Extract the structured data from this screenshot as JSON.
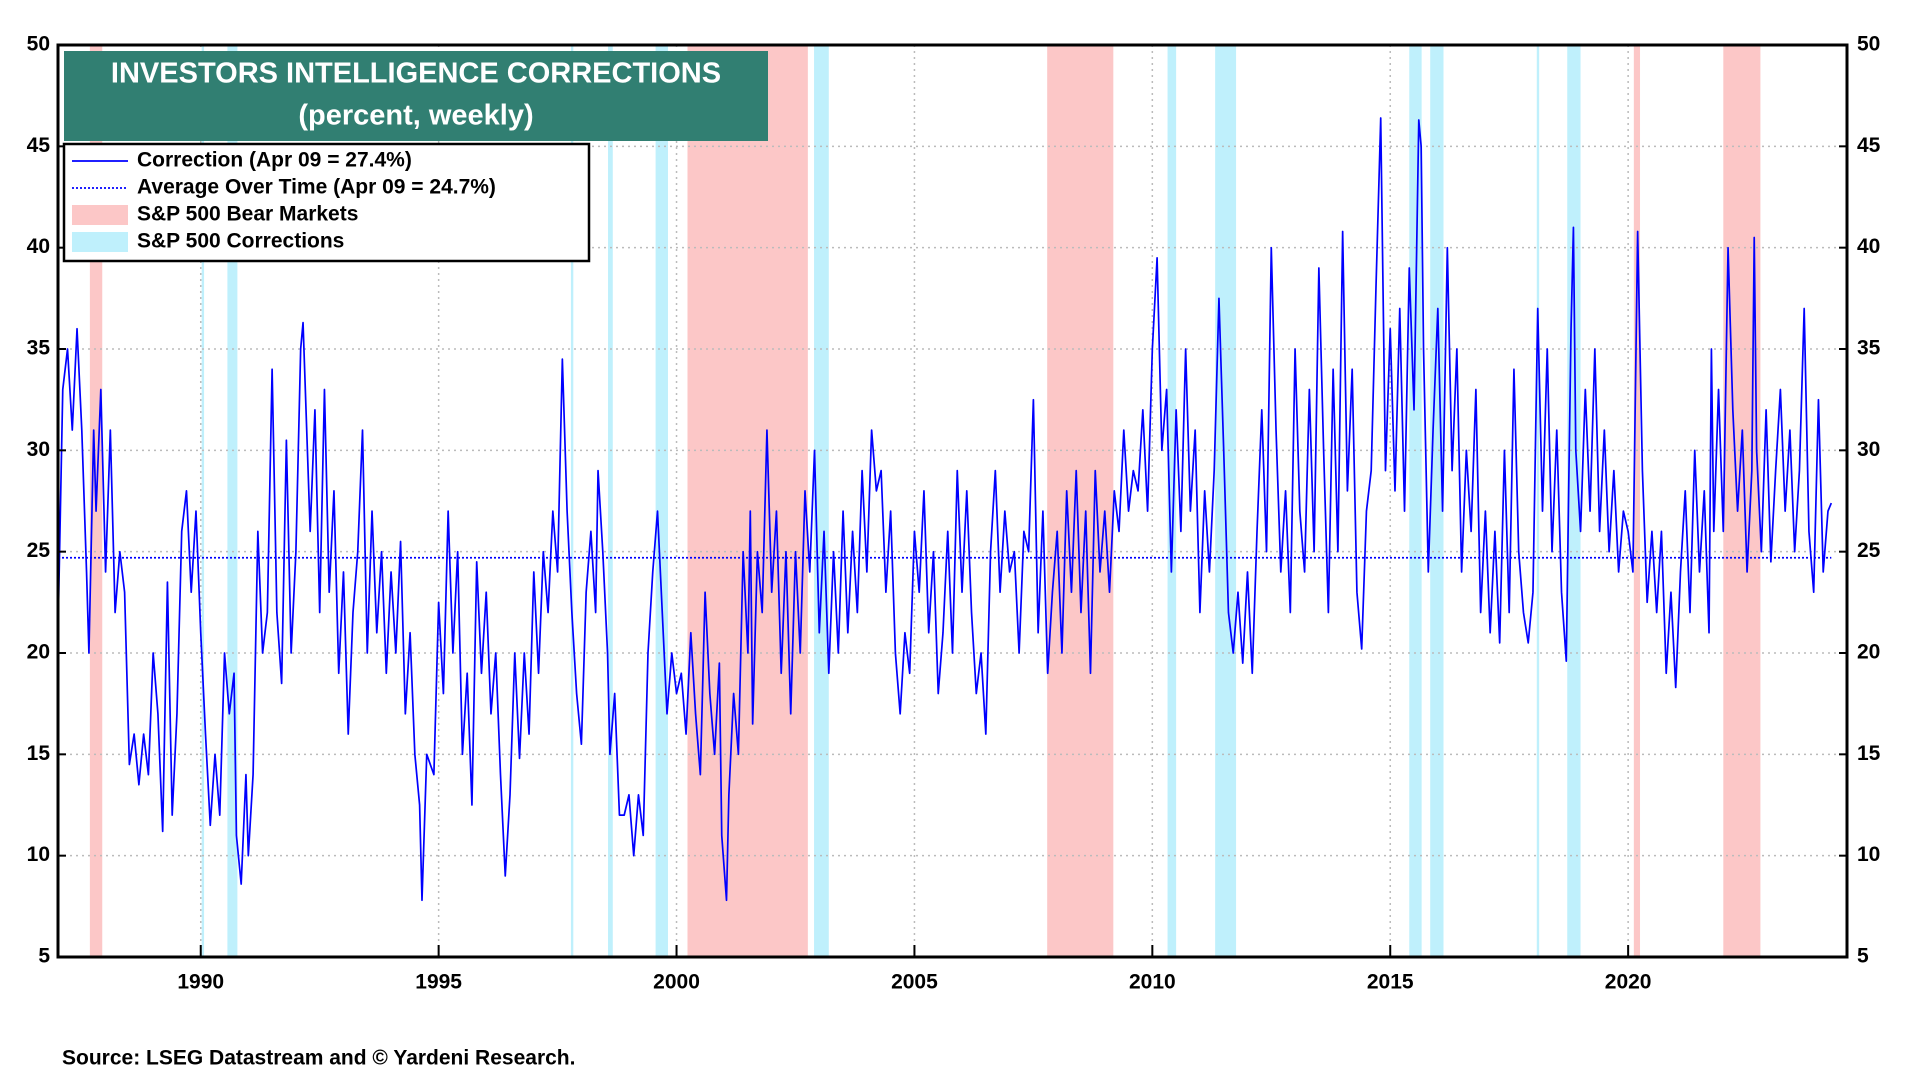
{
  "chart_data": {
    "type": "line",
    "title": "INVESTORS INTELLIGENCE CORRECTIONS",
    "subtitle": "(percent, weekly)",
    "source": "Source: LSEG Datastream and © Yardeni Research.",
    "xlim": [
      1987,
      2024.6
    ],
    "xticks": [
      1990,
      1995,
      2000,
      2005,
      2010,
      2015,
      2020
    ],
    "ylim": [
      5,
      50
    ],
    "yticks": [
      5,
      10,
      15,
      20,
      25,
      30,
      35,
      40,
      45,
      50
    ],
    "y2lim": [
      5,
      50
    ],
    "y2ticks": [
      5,
      10,
      15,
      20,
      25,
      30,
      35,
      40,
      45,
      50
    ],
    "grid": true,
    "legend": "upper left",
    "series": [
      {
        "name": "Correction (Apr 09 = 27.4%)",
        "color": "#0000ff",
        "style": "solid",
        "x": [
          1987.0,
          1987.1,
          1987.2,
          1987.3,
          1987.4,
          1987.5,
          1987.6,
          1987.65,
          1987.75,
          1987.8,
          1987.9,
          1988.0,
          1988.1,
          1988.2,
          1988.3,
          1988.4,
          1988.5,
          1988.6,
          1988.7,
          1988.8,
          1988.9,
          1989.0,
          1989.1,
          1989.2,
          1989.3,
          1989.4,
          1989.5,
          1989.6,
          1989.7,
          1989.8,
          1989.9,
          1990.0,
          1990.1,
          1990.2,
          1990.3,
          1990.4,
          1990.5,
          1990.6,
          1990.7,
          1990.75,
          1990.85,
          1990.95,
          1991.0,
          1991.1,
          1991.2,
          1991.3,
          1991.4,
          1991.5,
          1991.6,
          1991.7,
          1991.8,
          1991.9,
          1992.0,
          1992.1,
          1992.15,
          1992.3,
          1992.4,
          1992.5,
          1992.6,
          1992.7,
          1992.8,
          1992.9,
          1993.0,
          1993.1,
          1993.2,
          1993.3,
          1993.4,
          1993.5,
          1993.6,
          1993.7,
          1993.8,
          1993.9,
          1994.0,
          1994.1,
          1994.2,
          1994.3,
          1994.4,
          1994.5,
          1994.6,
          1994.65,
          1994.75,
          1994.9,
          1995.0,
          1995.1,
          1995.2,
          1995.3,
          1995.4,
          1995.5,
          1995.6,
          1995.7,
          1995.8,
          1995.9,
          1996.0,
          1996.1,
          1996.2,
          1996.3,
          1996.4,
          1996.5,
          1996.6,
          1996.7,
          1996.8,
          1996.9,
          1997.0,
          1997.1,
          1997.2,
          1997.3,
          1997.4,
          1997.5,
          1997.6,
          1997.7,
          1997.8,
          1997.9,
          1998.0,
          1998.1,
          1998.2,
          1998.3,
          1998.35,
          1998.45,
          1998.55,
          1998.6,
          1998.7,
          1998.8,
          1998.9,
          1999.0,
          1999.1,
          1999.2,
          1999.3,
          1999.4,
          1999.5,
          1999.6,
          1999.7,
          1999.8,
          1999.9,
          2000.0,
          2000.1,
          2000.2,
          2000.3,
          2000.4,
          2000.5,
          2000.6,
          2000.7,
          2000.8,
          2000.9,
          2000.95,
          2001.05,
          2001.1,
          2001.2,
          2001.3,
          2001.4,
          2001.5,
          2001.55,
          2001.6,
          2001.7,
          2001.8,
          2001.9,
          2002.0,
          2002.1,
          2002.2,
          2002.3,
          2002.4,
          2002.5,
          2002.6,
          2002.7,
          2002.8,
          2002.9,
          2003.0,
          2003.1,
          2003.2,
          2003.3,
          2003.4,
          2003.5,
          2003.6,
          2003.7,
          2003.8,
          2003.9,
          2004.0,
          2004.1,
          2004.2,
          2004.3,
          2004.4,
          2004.5,
          2004.6,
          2004.7,
          2004.8,
          2004.9,
          2005.0,
          2005.1,
          2005.2,
          2005.3,
          2005.4,
          2005.5,
          2005.6,
          2005.7,
          2005.8,
          2005.9,
          2006.0,
          2006.1,
          2006.2,
          2006.3,
          2006.4,
          2006.5,
          2006.6,
          2006.7,
          2006.8,
          2006.9,
          2007.0,
          2007.1,
          2007.2,
          2007.3,
          2007.4,
          2007.5,
          2007.6,
          2007.7,
          2007.8,
          2007.9,
          2008.0,
          2008.1,
          2008.2,
          2008.3,
          2008.4,
          2008.5,
          2008.6,
          2008.7,
          2008.8,
          2008.9,
          2009.0,
          2009.1,
          2009.2,
          2009.3,
          2009.4,
          2009.5,
          2009.6,
          2009.7,
          2009.8,
          2009.9,
          2010.0,
          2010.1,
          2010.2,
          2010.3,
          2010.4,
          2010.5,
          2010.6,
          2010.7,
          2010.8,
          2010.9,
          2011.0,
          2011.1,
          2011.2,
          2011.3,
          2011.4,
          2011.5,
          2011.6,
          2011.7,
          2011.8,
          2011.9,
          2012.0,
          2012.1,
          2012.2,
          2012.3,
          2012.4,
          2012.5,
          2012.6,
          2012.7,
          2012.8,
          2012.9,
          2013.0,
          2013.1,
          2013.2,
          2013.3,
          2013.4,
          2013.5,
          2013.6,
          2013.7,
          2013.8,
          2013.9,
          2014.0,
          2014.1,
          2014.2,
          2014.3,
          2014.4,
          2014.5,
          2014.6,
          2014.7,
          2014.8,
          2014.9,
          2015.0,
          2015.1,
          2015.2,
          2015.3,
          2015.4,
          2015.5,
          2015.6,
          2015.65,
          2015.7,
          2015.8,
          2015.9,
          2016.0,
          2016.1,
          2016.2,
          2016.3,
          2016.4,
          2016.5,
          2016.6,
          2016.7,
          2016.8,
          2016.9,
          2017.0,
          2017.1,
          2017.2,
          2017.3,
          2017.4,
          2017.5,
          2017.6,
          2017.7,
          2017.8,
          2017.9,
          2018.0,
          2018.1,
          2018.2,
          2018.3,
          2018.4,
          2018.5,
          2018.6,
          2018.7,
          2018.75,
          2018.8,
          2018.85,
          2018.9,
          2019.0,
          2019.1,
          2019.2,
          2019.3,
          2019.4,
          2019.5,
          2019.6,
          2019.7,
          2019.8,
          2019.9,
          2020.0,
          2020.1,
          2020.2,
          2020.3,
          2020.4,
          2020.5,
          2020.6,
          2020.7,
          2020.8,
          2020.9,
          2021.0,
          2021.1,
          2021.2,
          2021.3,
          2021.4,
          2021.5,
          2021.6,
          2021.7,
          2021.75,
          2021.8,
          2021.9,
          2022.0,
          2022.1,
          2022.2,
          2022.3,
          2022.4,
          2022.5,
          2022.6,
          2022.65,
          2022.7,
          2022.8,
          2022.9,
          2023.0,
          2023.1,
          2023.2,
          2023.3,
          2023.4,
          2023.5,
          2023.6,
          2023.7,
          2023.8,
          2023.9,
          2024.0,
          2024.1,
          2024.2,
          2024.27
        ],
        "values": [
          21,
          33,
          35,
          31,
          36,
          31,
          24,
          20,
          31,
          27,
          33,
          24,
          31,
          22,
          25,
          23,
          14.5,
          16,
          13.5,
          16,
          14,
          20,
          17,
          11.2,
          23.5,
          12,
          17,
          26,
          28,
          23,
          27,
          21,
          16,
          11.5,
          15,
          12,
          20,
          17,
          19,
          11,
          8.6,
          14,
          10,
          14,
          26,
          20,
          22,
          34,
          22,
          18.5,
          30.5,
          20,
          25,
          35,
          36.3,
          26,
          32,
          22,
          33,
          23,
          28,
          19,
          24,
          16,
          22,
          25,
          31,
          20,
          27,
          21,
          25,
          19,
          24,
          20,
          25.5,
          17,
          21,
          15,
          12.5,
          7.8,
          15,
          14,
          22.5,
          18,
          27,
          20,
          25,
          15,
          19,
          12.5,
          24.5,
          19,
          23,
          17,
          20,
          14,
          9,
          13,
          20,
          14.8,
          20,
          16,
          24,
          19,
          25,
          22,
          27,
          24,
          34.5,
          27,
          22,
          18,
          15.5,
          23,
          26,
          22,
          29,
          25,
          20,
          15,
          18,
          12,
          12,
          13,
          10,
          13,
          11,
          20,
          24,
          27,
          22,
          17,
          20,
          18,
          19,
          16,
          21,
          17,
          14,
          23,
          18,
          15,
          19.5,
          11,
          7.8,
          13,
          18,
          15,
          25,
          20,
          27,
          16.5,
          25,
          22,
          31,
          23,
          27,
          19,
          25,
          17,
          25,
          20,
          28,
          24,
          30,
          21,
          26,
          19,
          25,
          20,
          27,
          21,
          26,
          22,
          29,
          24,
          31,
          28,
          29,
          23,
          27,
          20,
          17,
          21,
          19,
          26,
          23,
          28,
          21,
          25,
          18,
          21,
          26,
          20,
          29,
          23,
          28,
          22,
          18,
          20,
          16,
          25,
          29,
          23,
          27,
          24,
          25,
          20,
          26,
          25,
          32.5,
          21,
          27,
          19,
          23,
          26,
          20,
          28,
          23,
          29,
          22,
          27,
          19,
          29,
          24,
          27,
          23,
          28,
          26,
          31,
          27,
          29,
          28,
          32,
          27,
          35,
          39.5,
          30,
          33,
          24,
          32,
          26,
          35,
          27,
          31,
          22,
          28,
          24,
          29,
          37.5,
          30,
          22,
          20,
          23,
          19.5,
          24,
          19,
          26,
          32,
          25,
          40,
          31,
          24,
          28,
          22,
          35,
          27,
          24,
          33,
          25,
          39,
          30,
          22,
          34,
          25,
          40.8,
          28,
          34,
          23,
          20.2,
          27,
          29,
          38,
          46.4,
          29,
          36,
          28,
          37,
          27,
          39,
          32,
          46.3,
          45,
          35,
          24,
          31,
          37,
          27,
          40,
          29,
          35,
          24,
          30,
          26,
          33,
          22,
          27,
          21,
          26,
          20.5,
          30,
          22,
          34,
          25,
          22,
          20.5,
          23,
          37,
          27,
          35,
          25,
          31,
          23,
          19.6,
          28,
          36,
          41,
          30,
          26,
          33,
          27,
          35,
          26,
          31,
          25,
          29,
          24,
          27,
          26,
          24,
          40.8,
          29,
          22.5,
          26,
          22,
          26,
          19,
          23,
          18.3,
          24,
          28,
          22,
          30,
          24,
          28,
          21,
          35,
          26,
          33,
          26,
          40,
          32,
          27,
          31,
          24,
          29,
          40.5,
          30,
          25,
          32,
          24.5,
          29,
          33,
          27,
          31,
          25,
          29,
          37,
          26,
          23,
          32.5,
          24,
          27,
          27.4
        ]
      },
      {
        "name": "Average Over Time (Apr 09 = 24.7%)",
        "color": "#0000ff",
        "style": "dotted",
        "x": [
          1987.0,
          2024.27
        ],
        "values": [
          24.7,
          24.7
        ]
      }
    ],
    "shaded_regions": [
      {
        "name": "S&P 500 Bear Markets",
        "color": "#fcc7c7",
        "ranges": [
          [
            1987.67,
            1987.93
          ],
          [
            2000.23,
            2002.76
          ],
          [
            2007.79,
            2009.18
          ],
          [
            2020.12,
            2020.25
          ],
          [
            2022.0,
            2022.78
          ]
        ]
      },
      {
        "name": "S&P 500 Corrections",
        "color": "#bff0fc",
        "ranges": [
          [
            1990.02,
            1990.07
          ],
          [
            1990.56,
            1990.77
          ],
          [
            1997.78,
            1997.83
          ],
          [
            1998.56,
            1998.66
          ],
          [
            1999.56,
            1999.82
          ],
          [
            2002.89,
            2003.2
          ],
          [
            2010.32,
            2010.5
          ],
          [
            2011.32,
            2011.76
          ],
          [
            2015.4,
            2015.66
          ],
          [
            2015.84,
            2016.12
          ],
          [
            2018.08,
            2018.13
          ],
          [
            2018.72,
            2019.0
          ]
        ]
      }
    ]
  }
}
